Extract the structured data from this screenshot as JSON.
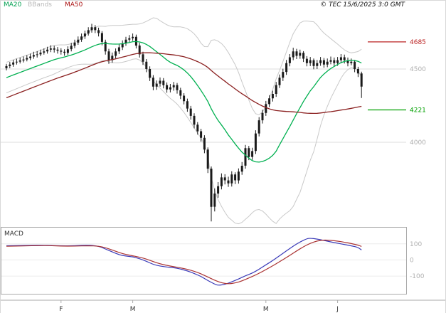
{
  "header": {
    "legend": [
      {
        "label": "MA20",
        "color": "#00a050"
      },
      {
        "label": "BBands",
        "color": "#b8b8b8"
      },
      {
        "label": "MA50",
        "color": "#aa1111"
      }
    ],
    "copyright": "© TEC 15/6/2025 3:0 GMT"
  },
  "chart_data": [
    {
      "type": "candlestick",
      "panel": "price",
      "title": "",
      "ylim": [
        3432,
        4898
      ],
      "candles": [
        [
          4505,
          4535,
          4490,
          4520
        ],
        [
          4520,
          4548,
          4505,
          4530
        ],
        [
          4530,
          4562,
          4515,
          4545
        ],
        [
          4545,
          4570,
          4530,
          4550
        ],
        [
          4550,
          4578,
          4538,
          4558
        ],
        [
          4558,
          4585,
          4545,
          4565
        ],
        [
          4565,
          4595,
          4552,
          4575
        ],
        [
          4575,
          4605,
          4560,
          4585
        ],
        [
          4585,
          4618,
          4570,
          4595
        ],
        [
          4595,
          4622,
          4578,
          4600
        ],
        [
          4600,
          4632,
          4588,
          4612
        ],
        [
          4612,
          4640,
          4598,
          4620
        ],
        [
          4620,
          4652,
          4605,
          4632
        ],
        [
          4632,
          4662,
          4615,
          4640
        ],
        [
          4640,
          4658,
          4612,
          4632
        ],
        [
          4632,
          4650,
          4605,
          4625
        ],
        [
          4625,
          4642,
          4598,
          4618
        ],
        [
          4618,
          4635,
          4590,
          4610
        ],
        [
          4610,
          4655,
          4595,
          4635
        ],
        [
          4635,
          4678,
          4620,
          4658
        ],
        [
          4658,
          4700,
          4642,
          4680
        ],
        [
          4680,
          4722,
          4665,
          4700
        ],
        [
          4700,
          4742,
          4685,
          4722
        ],
        [
          4722,
          4762,
          4705,
          4742
        ],
        [
          4742,
          4785,
          4728,
          4765
        ],
        [
          4765,
          4808,
          4748,
          4785
        ],
        [
          4785,
          4800,
          4745,
          4765
        ],
        [
          4765,
          4782,
          4722,
          4745
        ],
        [
          4745,
          4758,
          4662,
          4685
        ],
        [
          4685,
          4700,
          4598,
          4620
        ],
        [
          4620,
          4638,
          4535,
          4560
        ],
        [
          4560,
          4612,
          4542,
          4590
        ],
        [
          4590,
          4640,
          4572,
          4620
        ],
        [
          4620,
          4668,
          4602,
          4648
        ],
        [
          4648,
          4695,
          4630,
          4675
        ],
        [
          4675,
          4720,
          4658,
          4700
        ],
        [
          4700,
          4732,
          4685,
          4710
        ],
        [
          4710,
          4742,
          4692,
          4720
        ],
        [
          4720,
          4735,
          4640,
          4660
        ],
        [
          4660,
          4678,
          4578,
          4600
        ],
        [
          4600,
          4618,
          4528,
          4550
        ],
        [
          4550,
          4568,
          4478,
          4500
        ],
        [
          4500,
          4518,
          4418,
          4440
        ],
        [
          4440,
          4458,
          4355,
          4380
        ],
        [
          4380,
          4422,
          4358,
          4400
        ],
        [
          4400,
          4442,
          4380,
          4420
        ],
        [
          4420,
          4438,
          4368,
          4390
        ],
        [
          4390,
          4408,
          4338,
          4360
        ],
        [
          4360,
          4398,
          4340,
          4375
        ],
        [
          4375,
          4412,
          4352,
          4390
        ],
        [
          4390,
          4405,
          4332,
          4355
        ],
        [
          4355,
          4372,
          4295,
          4318
        ],
        [
          4318,
          4335,
          4258,
          4280
        ],
        [
          4280,
          4298,
          4208,
          4230
        ],
        [
          4230,
          4248,
          4155,
          4180
        ],
        [
          4180,
          4198,
          4095,
          4120
        ],
        [
          4120,
          4138,
          4052,
          4075
        ],
        [
          4075,
          4092,
          4005,
          4030
        ],
        [
          4030,
          4048,
          3925,
          3950
        ],
        [
          3950,
          3965,
          3790,
          3820
        ],
        [
          3820,
          3835,
          3460,
          3560
        ],
        [
          3560,
          3685,
          3528,
          3650
        ],
        [
          3650,
          3728,
          3622,
          3700
        ],
        [
          3700,
          3788,
          3678,
          3760
        ],
        [
          3760,
          3782,
          3712,
          3740
        ],
        [
          3740,
          3765,
          3695,
          3720
        ],
        [
          3720,
          3802,
          3698,
          3780
        ],
        [
          3780,
          3795,
          3715,
          3740
        ],
        [
          3740,
          3822,
          3718,
          3800
        ],
        [
          3800,
          3865,
          3778,
          3840
        ],
        [
          3840,
          3982,
          3820,
          3960
        ],
        [
          3960,
          3975,
          3878,
          3900
        ],
        [
          3900,
          3962,
          3880,
          3940
        ],
        [
          3940,
          4082,
          3920,
          4060
        ],
        [
          4060,
          4172,
          4040,
          4150
        ],
        [
          4150,
          4222,
          4128,
          4200
        ],
        [
          4200,
          4282,
          4180,
          4260
        ],
        [
          4260,
          4322,
          4240,
          4300
        ],
        [
          4300,
          4352,
          4278,
          4330
        ],
        [
          4330,
          4412,
          4310,
          4390
        ],
        [
          4390,
          4462,
          4370,
          4440
        ],
        [
          4440,
          4502,
          4418,
          4480
        ],
        [
          4480,
          4562,
          4460,
          4540
        ],
        [
          4540,
          4602,
          4518,
          4580
        ],
        [
          4580,
          4645,
          4560,
          4620
        ],
        [
          4620,
          4638,
          4568,
          4590
        ],
        [
          4590,
          4632,
          4570,
          4610
        ],
        [
          4610,
          4622,
          4548,
          4570
        ],
        [
          4570,
          4588,
          4518,
          4540
        ],
        [
          4540,
          4582,
          4520,
          4560
        ],
        [
          4560,
          4572,
          4498,
          4520
        ],
        [
          4520,
          4562,
          4500,
          4540
        ],
        [
          4540,
          4582,
          4522,
          4560
        ],
        [
          4560,
          4575,
          4508,
          4530
        ],
        [
          4530,
          4572,
          4512,
          4550
        ],
        [
          4550,
          4585,
          4532,
          4560
        ],
        [
          4560,
          4578,
          4518,
          4540
        ],
        [
          4540,
          4582,
          4522,
          4560
        ],
        [
          4560,
          4602,
          4540,
          4580
        ],
        [
          4580,
          4598,
          4538,
          4560
        ],
        [
          4560,
          4578,
          4518,
          4540
        ],
        [
          4540,
          4572,
          4525,
          4550
        ],
        [
          4550,
          4562,
          4478,
          4500
        ],
        [
          4500,
          4515,
          4445,
          4470
        ],
        [
          4470,
          4482,
          4302,
          4380
        ]
      ],
      "overlays": [
        {
          "name": "MA20",
          "kind": "sma",
          "window": 20,
          "color": "#00b050"
        },
        {
          "name": "MA50",
          "kind": "sma",
          "window": 50,
          "color": "#8b2020"
        },
        {
          "name": "BBands",
          "kind": "bollinger",
          "window": 20,
          "mult": 2,
          "color": "#c9c9c9"
        }
      ],
      "warmup": {
        "start": 4060,
        "bars": 50
      },
      "levels": [
        {
          "label": "4685",
          "value": 4685,
          "color": "#bb2222"
        },
        {
          "label": "4221",
          "value": 4221,
          "color": "#00a000"
        }
      ],
      "gridlines": [
        {
          "label": "4500",
          "value": 4500
        },
        {
          "label": "4000",
          "value": 4000
        }
      ]
    },
    {
      "type": "line",
      "panel": "macd",
      "title": "MACD",
      "ylim": [
        -210,
        205
      ],
      "y_ticks": [
        {
          "label": "100",
          "value": 100
        },
        {
          "label": "0",
          "value": 0
        },
        {
          "label": "-100",
          "value": -100
        }
      ],
      "series": [
        {
          "name": "MACD",
          "color": "#3a3ab8",
          "points": [
            [
              0,
              88
            ],
            [
              6,
              91
            ],
            [
              12,
              92
            ],
            [
              16,
              87
            ],
            [
              20,
              88
            ],
            [
              24,
              93
            ],
            [
              27,
              86
            ],
            [
              29,
              68
            ],
            [
              31,
              50
            ],
            [
              33,
              32
            ],
            [
              35,
              24
            ],
            [
              37,
              20
            ],
            [
              39,
              8
            ],
            [
              41,
              -8
            ],
            [
              43,
              -28
            ],
            [
              45,
              -38
            ],
            [
              47,
              -44
            ],
            [
              49,
              -48
            ],
            [
              51,
              -56
            ],
            [
              53,
              -68
            ],
            [
              55,
              -84
            ],
            [
              57,
              -102
            ],
            [
              59,
              -128
            ],
            [
              61,
              -150
            ],
            [
              62,
              -158
            ],
            [
              64,
              -152
            ],
            [
              66,
              -136
            ],
            [
              68,
              -118
            ],
            [
              70,
              -98
            ],
            [
              72,
              -82
            ],
            [
              74,
              -58
            ],
            [
              76,
              -30
            ],
            [
              78,
              -4
            ],
            [
              80,
              26
            ],
            [
              82,
              56
            ],
            [
              84,
              86
            ],
            [
              86,
              112
            ],
            [
              88,
              132
            ],
            [
              89,
              135
            ],
            [
              91,
              130
            ],
            [
              93,
              121
            ],
            [
              95,
              112
            ],
            [
              97,
              104
            ],
            [
              99,
              96
            ],
            [
              101,
              88
            ],
            [
              103,
              78
            ],
            [
              104,
              62
            ]
          ]
        },
        {
          "name": "Signal",
          "color": "#aa3333",
          "points": [
            [
              0,
              85
            ],
            [
              6,
              88
            ],
            [
              12,
              90
            ],
            [
              16,
              86
            ],
            [
              20,
              86
            ],
            [
              24,
              88
            ],
            [
              27,
              86
            ],
            [
              29,
              76
            ],
            [
              31,
              62
            ],
            [
              33,
              46
            ],
            [
              35,
              34
            ],
            [
              37,
              26
            ],
            [
              39,
              17
            ],
            [
              41,
              6
            ],
            [
              43,
              -10
            ],
            [
              45,
              -24
            ],
            [
              47,
              -34
            ],
            [
              49,
              -42
            ],
            [
              51,
              -49
            ],
            [
              53,
              -58
            ],
            [
              55,
              -70
            ],
            [
              57,
              -86
            ],
            [
              59,
              -106
            ],
            [
              61,
              -126
            ],
            [
              63,
              -142
            ],
            [
              65,
              -149
            ],
            [
              67,
              -143
            ],
            [
              69,
              -130
            ],
            [
              71,
              -112
            ],
            [
              73,
              -93
            ],
            [
              75,
              -72
            ],
            [
              77,
              -48
            ],
            [
              79,
              -24
            ],
            [
              81,
              2
            ],
            [
              83,
              28
            ],
            [
              85,
              56
            ],
            [
              87,
              82
            ],
            [
              89,
              104
            ],
            [
              91,
              118
            ],
            [
              93,
              124
            ],
            [
              95,
              122
            ],
            [
              97,
              117
            ],
            [
              99,
              110
            ],
            [
              101,
              102
            ],
            [
              103,
              92
            ],
            [
              104,
              84
            ]
          ]
        }
      ]
    }
  ],
  "x_axis": {
    "month_labels": [
      {
        "label": "F",
        "index": 16
      },
      {
        "label": "M",
        "index": 37
      },
      {
        "label": "M",
        "index": 76
      },
      {
        "label": "J",
        "index": 97
      }
    ]
  }
}
